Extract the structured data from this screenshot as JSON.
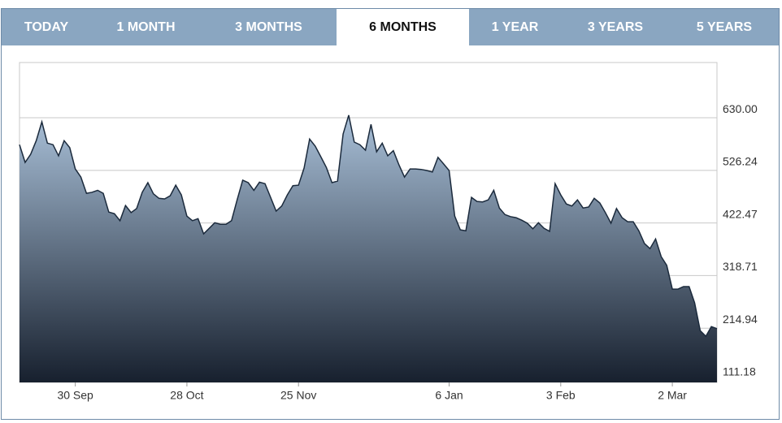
{
  "tabs": [
    "TODAY",
    "1 MONTH",
    "3 MONTHS",
    "6 MONTHS",
    "1 YEAR",
    "3 YEARS",
    "5 YEARS"
  ],
  "active_tab": 3,
  "chart_data": {
    "type": "area",
    "categories": [
      null,
      null,
      null,
      null,
      null,
      null,
      null,
      null,
      null,
      null,
      "30 Sep",
      null,
      null,
      null,
      null,
      null,
      null,
      null,
      null,
      null,
      null,
      null,
      null,
      null,
      null,
      null,
      null,
      null,
      null,
      null,
      "28 Oct",
      null,
      null,
      null,
      null,
      null,
      null,
      null,
      null,
      null,
      null,
      null,
      null,
      null,
      null,
      null,
      null,
      null,
      null,
      null,
      "25 Nov",
      null,
      null,
      null,
      null,
      null,
      null,
      null,
      null,
      null,
      null,
      null,
      null,
      null,
      null,
      null,
      null,
      null,
      null,
      null,
      null,
      null,
      null,
      null,
      null,
      null,
      null,
      "6 Jan",
      null,
      null,
      null,
      null,
      null,
      null,
      null,
      null,
      null,
      null,
      null,
      null,
      null,
      null,
      null,
      null,
      null,
      null,
      null,
      "3 Feb",
      null,
      null,
      null,
      null,
      null,
      null,
      null,
      null,
      null,
      null,
      null,
      null,
      null,
      null,
      null,
      null,
      null,
      null,
      null,
      "2 Mar",
      null,
      null,
      null,
      null,
      null,
      null,
      null,
      null
    ],
    "values": [
      577,
      542,
      558,
      585,
      622,
      580,
      577,
      555,
      585,
      571,
      529,
      513,
      481,
      483,
      487,
      481,
      444,
      441,
      427,
      457,
      443,
      451,
      483,
      502,
      480,
      471,
      470,
      476,
      497,
      478,
      436,
      427,
      431,
      401,
      412,
      423,
      420,
      420,
      427,
      468,
      507,
      502,
      487,
      503,
      500,
      473,
      446,
      456,
      478,
      496,
      497,
      531,
      588,
      574,
      553,
      532,
      502,
      505,
      598,
      635,
      582,
      577,
      566,
      617,
      563,
      580,
      555,
      565,
      537,
      513,
      529,
      529,
      528,
      526,
      523,
      552,
      539,
      526,
      436,
      409,
      407,
      473,
      465,
      464,
      468,
      487,
      452,
      439,
      435,
      433,
      428,
      422,
      411,
      423,
      412,
      406,
      500,
      478,
      460,
      456,
      468,
      452,
      454,
      471,
      462,
      443,
      422,
      451,
      433,
      425,
      425,
      407,
      382,
      372,
      391,
      356,
      339,
      292,
      292,
      297,
      297,
      265,
      210,
      199,
      218,
      214
    ],
    "color": "#1b2a3c",
    "fill_gradient": [
      "#a9c0d8",
      "#17202e"
    ],
    "ylim": [
      108,
      739
    ],
    "yticks": [
      {
        "value": 111.18,
        "label": "111.18"
      },
      214.94,
      318.71,
      422.47,
      526.24,
      {
        "value": 630,
        "label": "630.00"
      }
    ],
    "grid": true
  }
}
